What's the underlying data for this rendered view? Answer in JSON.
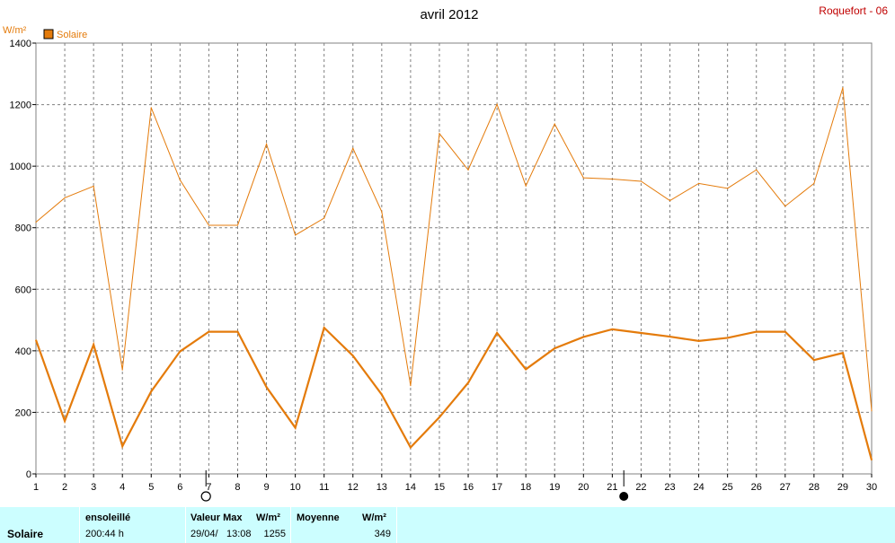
{
  "header": {
    "title": "avril 2012",
    "station": "Roquefort - 06",
    "unit": "W/m²",
    "legend_label": "Solaire",
    "legend_color": "#e47b0b"
  },
  "chart_data": {
    "type": "line",
    "title": "avril 2012",
    "ylabel": "W/m²",
    "xlabel": "",
    "ylim": [
      0,
      1400
    ],
    "xlim": [
      1,
      30
    ],
    "y_ticks": [
      0,
      200,
      400,
      600,
      800,
      1000,
      1200,
      1400
    ],
    "x": [
      1,
      2,
      3,
      4,
      5,
      6,
      7,
      8,
      9,
      10,
      11,
      12,
      13,
      14,
      15,
      16,
      17,
      18,
      19,
      20,
      21,
      22,
      23,
      24,
      25,
      26,
      27,
      28,
      29,
      30
    ],
    "grid": true,
    "legend": "top-left",
    "series": [
      {
        "name": "Solaire",
        "kind": "max",
        "color": "#e47b0b",
        "values": [
          818,
          897,
          935,
          338,
          1190,
          955,
          808,
          808,
          1072,
          776,
          831,
          1058,
          852,
          287,
          1106,
          988,
          1201,
          936,
          1137,
          962,
          958,
          951,
          888,
          944,
          928,
          988,
          870,
          944,
          1255,
          205
        ]
      },
      {
        "name": "Solaire",
        "kind": "mean",
        "color": "#e47b0b",
        "values": [
          435,
          172,
          420,
          90,
          268,
          398,
          462,
          462,
          282,
          150,
          475,
          384,
          258,
          86,
          184,
          296,
          458,
          340,
          408,
          445,
          470,
          458,
          446,
          432,
          442,
          462,
          462,
          370,
          393,
          45
        ]
      }
    ],
    "markers": [
      {
        "x": 6.9,
        "symbol": "new-moon-outline"
      },
      {
        "x": 21.4,
        "symbol": "full-moon-filled"
      }
    ]
  },
  "summary": {
    "row_label": "Solaire",
    "sunshine_label": "ensoleillé",
    "sunshine_value": "200:44 h",
    "max_label": "Valeur Max",
    "max_unit": "W/m²",
    "max_date": "29/04/",
    "max_time": "13:08",
    "max_value": "1255",
    "mean_label": "Moyenne",
    "mean_unit": "W/m²",
    "mean_value": "349",
    "panel_color": "#ccfeff"
  }
}
